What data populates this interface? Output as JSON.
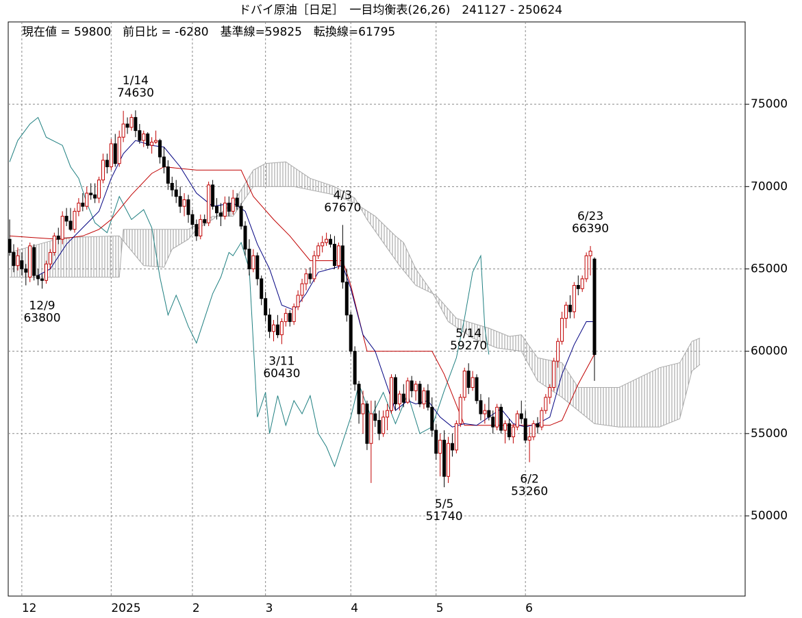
{
  "chart_data": {
    "type": "candlestick",
    "title": "ドバイ原油［日足］　一目均衡表(26,26)　241127 - 250624",
    "info": "現在値 = 59800　前日比 = -6280　基準線=59825　転換線=61795",
    "ylim": [
      45130,
      80000
    ],
    "yticks": [
      50000,
      55000,
      60000,
      65000,
      70000,
      75000
    ],
    "xlim": [
      -0.35,
      181.1
    ],
    "xticks": [
      {
        "value": 3,
        "label": "12"
      },
      {
        "value": 25,
        "label": "2025"
      },
      {
        "value": 45,
        "label": "2"
      },
      {
        "value": 63,
        "label": "3"
      },
      {
        "value": 84,
        "label": "4"
      },
      {
        "value": 105,
        "label": "5"
      },
      {
        "value": 127,
        "label": "6"
      }
    ],
    "grid": true,
    "up_color": "#c00000",
    "down_color": "#000000",
    "candles": [
      [
        66800,
        68000,
        65800,
        66000
      ],
      [
        66000,
        66500,
        64800,
        65200
      ],
      [
        65200,
        66300,
        64900,
        65800
      ],
      [
        65500,
        66000,
        64600,
        65000
      ],
      [
        65000,
        65300,
        64000,
        64800
      ],
      [
        64500,
        66600,
        64200,
        66400
      ],
      [
        66300,
        66500,
        64300,
        64600
      ],
      [
        64600,
        65000,
        64000,
        64400
      ],
      [
        64400,
        64700,
        63800,
        64300
      ],
      [
        64300,
        65500,
        64100,
        65300
      ],
      [
        65300,
        66200,
        65000,
        66000
      ],
      [
        66000,
        67200,
        65800,
        67000
      ],
      [
        67000,
        67500,
        66500,
        66800
      ],
      [
        66800,
        68500,
        66500,
        68200
      ],
      [
        68200,
        68700,
        67600,
        67900
      ],
      [
        67900,
        68700,
        67300,
        67400
      ],
      [
        67400,
        68700,
        67200,
        68500
      ],
      [
        68500,
        69300,
        68200,
        69000
      ],
      [
        69000,
        69600,
        68500,
        68800
      ],
      [
        68800,
        70000,
        68600,
        69600
      ],
      [
        69600,
        70200,
        69200,
        69500
      ],
      [
        69500,
        70200,
        69000,
        69300
      ],
      [
        69300,
        70600,
        69000,
        70400
      ],
      [
        70400,
        72000,
        70200,
        71600
      ],
      [
        71600,
        72000,
        70800,
        71200
      ],
      [
        71200,
        72900,
        71000,
        72600
      ],
      [
        72600,
        73200,
        71200,
        71400
      ],
      [
        71400,
        73400,
        71200,
        73000
      ],
      [
        73000,
        74600,
        72700,
        73800
      ],
      [
        73800,
        74200,
        73200,
        73600
      ],
      [
        73600,
        74400,
        73400,
        74200
      ],
      [
        74200,
        74630,
        73000,
        73400
      ],
      [
        73400,
        73800,
        72600,
        72800
      ],
      [
        72800,
        73400,
        72400,
        73200
      ],
      [
        73200,
        73300,
        72300,
        72500
      ],
      [
        72500,
        73000,
        72000,
        72700
      ],
      [
        72700,
        73400,
        72600,
        72800
      ],
      [
        72800,
        72900,
        71400,
        71800
      ],
      [
        71800,
        72400,
        70800,
        71200
      ],
      [
        71200,
        71600,
        69800,
        70200
      ],
      [
        70200,
        70600,
        69400,
        69800
      ],
      [
        69800,
        70400,
        69000,
        69400
      ],
      [
        69400,
        70000,
        68400,
        68800
      ],
      [
        68800,
        69600,
        68200,
        69200
      ],
      [
        69200,
        69500,
        67800,
        68300
      ],
      [
        68300,
        68600,
        67400,
        67700
      ],
      [
        67700,
        68000,
        66700,
        67000
      ],
      [
        67000,
        68300,
        66800,
        68000
      ],
      [
        68000,
        68300,
        67600,
        67800
      ],
      [
        67800,
        70300,
        67600,
        70100
      ],
      [
        70100,
        70400,
        68600,
        68800
      ],
      [
        68800,
        69300,
        68000,
        68400
      ],
      [
        68400,
        69000,
        67600,
        68200
      ],
      [
        68200,
        69400,
        68000,
        69000
      ],
      [
        69000,
        69400,
        68200,
        68500
      ],
      [
        68500,
        69800,
        68300,
        69300
      ],
      [
        69300,
        69600,
        68600,
        68800
      ],
      [
        68800,
        69000,
        67400,
        67600
      ],
      [
        67600,
        67900,
        65800,
        66200
      ],
      [
        66200,
        66800,
        64600,
        65000
      ],
      [
        65000,
        66200,
        64800,
        65800
      ],
      [
        65800,
        66000,
        64000,
        64400
      ],
      [
        64400,
        64600,
        62800,
        63200
      ],
      [
        63200,
        63600,
        61800,
        62200
      ],
      [
        62200,
        62600,
        60800,
        61200
      ],
      [
        61200,
        61900,
        60600,
        61600
      ],
      [
        61600,
        62200,
        60800,
        61000
      ],
      [
        61000,
        62000,
        60430,
        61800
      ],
      [
        61800,
        62600,
        61500,
        62300
      ],
      [
        62300,
        62500,
        61500,
        61800
      ],
      [
        61800,
        62900,
        61600,
        62700
      ],
      [
        62700,
        63700,
        62500,
        63400
      ],
      [
        63400,
        64400,
        63000,
        64100
      ],
      [
        64100,
        65000,
        63700,
        64700
      ],
      [
        64700,
        65100,
        64100,
        64400
      ],
      [
        64400,
        66100,
        64200,
        65800
      ],
      [
        65800,
        66600,
        65600,
        66400
      ],
      [
        66400,
        67000,
        66000,
        66600
      ],
      [
        66600,
        67200,
        66400,
        66800
      ],
      [
        66800,
        67100,
        66300,
        66500
      ],
      [
        66500,
        67000,
        65000,
        65200
      ],
      [
        65200,
        66600,
        65000,
        66400
      ],
      [
        66400,
        67670,
        63800,
        64200
      ],
      [
        64200,
        65000,
        61800,
        62200
      ],
      [
        62200,
        62400,
        59800,
        60000
      ],
      [
        60000,
        60300,
        57600,
        58000
      ],
      [
        58000,
        58200,
        55600,
        56200
      ],
      [
        56200,
        57600,
        55000,
        56800
      ],
      [
        56800,
        57000,
        54000,
        54400
      ],
      [
        54400,
        57000,
        52000,
        56200
      ],
      [
        56200,
        57000,
        55400,
        55800
      ],
      [
        55800,
        56400,
        54600,
        55000
      ],
      [
        55000,
        56400,
        54800,
        56000
      ],
      [
        56000,
        56800,
        55200,
        56400
      ],
      [
        56400,
        58600,
        56200,
        58400
      ],
      [
        58400,
        58600,
        56400,
        56800
      ],
      [
        56800,
        57600,
        56400,
        57400
      ],
      [
        57400,
        58000,
        56600,
        56900
      ],
      [
        56900,
        58400,
        56800,
        58200
      ],
      [
        58200,
        58500,
        57200,
        57600
      ],
      [
        57600,
        58200,
        57000,
        58000
      ],
      [
        58000,
        58200,
        56600,
        56800
      ],
      [
        56800,
        57800,
        56500,
        57600
      ],
      [
        57600,
        58000,
        56400,
        56600
      ],
      [
        56600,
        57200,
        54800,
        55200
      ],
      [
        55200,
        55600,
        53400,
        53800
      ],
      [
        53800,
        55000,
        52400,
        54600
      ],
      [
        54600,
        55200,
        51740,
        52400
      ],
      [
        52400,
        54800,
        52000,
        54400
      ],
      [
        54400,
        55000,
        53600,
        54000
      ],
      [
        54000,
        55800,
        53800,
        55600
      ],
      [
        55600,
        57400,
        55400,
        57200
      ],
      [
        57200,
        59000,
        57000,
        58800
      ],
      [
        58800,
        59270,
        57400,
        57800
      ],
      [
        57800,
        58800,
        57600,
        58400
      ],
      [
        58400,
        58600,
        56800,
        57000
      ],
      [
        57000,
        57400,
        55800,
        56200
      ],
      [
        56200,
        56800,
        55600,
        56400
      ],
      [
        56400,
        57200,
        55800,
        56000
      ],
      [
        56000,
        56400,
        55000,
        55400
      ],
      [
        55400,
        56800,
        55200,
        56600
      ],
      [
        56600,
        56800,
        55000,
        55200
      ],
      [
        55200,
        55800,
        54400,
        55600
      ],
      [
        55600,
        55900,
        54600,
        54800
      ],
      [
        54800,
        55600,
        54400,
        55400
      ],
      [
        55400,
        56400,
        55200,
        56200
      ],
      [
        56200,
        57000,
        55600,
        55900
      ],
      [
        55900,
        56400,
        54400,
        54600
      ],
      [
        54600,
        55400,
        53260,
        54800
      ],
      [
        54800,
        55800,
        54600,
        55600
      ],
      [
        55600,
        56000,
        55000,
        55400
      ],
      [
        55400,
        56600,
        55200,
        56400
      ],
      [
        56400,
        57400,
        56200,
        57200
      ],
      [
        57200,
        58000,
        56800,
        57800
      ],
      [
        57800,
        59600,
        57600,
        59400
      ],
      [
        59400,
        60800,
        59000,
        60600
      ],
      [
        60600,
        62400,
        60400,
        62000
      ],
      [
        62000,
        63000,
        61400,
        62800
      ],
      [
        62800,
        63400,
        62000,
        62400
      ],
      [
        62400,
        64200,
        62000,
        64000
      ],
      [
        64000,
        64600,
        63400,
        63800
      ],
      [
        63800,
        64600,
        63600,
        64400
      ],
      [
        64400,
        66000,
        64200,
        65800
      ],
      [
        65800,
        66390,
        64600,
        66080
      ],
      [
        65600,
        65700,
        58200,
        59800
      ]
    ],
    "annotations": [
      {
        "label": "12/9",
        "value": 63800
      },
      {
        "label": "1/14",
        "value": 74630
      },
      {
        "label": "3/11",
        "value": 60430
      },
      {
        "label": "4/3",
        "value": 67670
      },
      {
        "label": "5/5",
        "value": 51740
      },
      {
        "label": "5/14",
        "value": 59270
      },
      {
        "label": "6/2",
        "value": 53260
      },
      {
        "label": "6/23",
        "value": 66390
      }
    ],
    "cloud": {
      "color": "#aaaaaa",
      "span_a": {
        "x": [
          0,
          13,
          26,
          27,
          33,
          38,
          40,
          44,
          46,
          50,
          55,
          60,
          63,
          68,
          74,
          80,
          85,
          88,
          92,
          96,
          100,
          105,
          110,
          118,
          123,
          126,
          130,
          136,
          140,
          150,
          160,
          165,
          168,
          170
        ],
        "values": [
          66000,
          66900,
          67000,
          67000,
          65200,
          65100,
          66200,
          66800,
          67400,
          68000,
          69000,
          71000,
          71400,
          71500,
          70500,
          70000,
          69300,
          68000,
          66600,
          65200,
          64000,
          63400,
          62000,
          61400,
          60900,
          61000,
          59600,
          59300,
          57800,
          57800,
          59000,
          59300,
          60600,
          60800
        ]
      },
      "span_b": {
        "x": [
          0,
          27,
          28,
          44,
          50,
          55,
          60,
          70,
          80,
          85,
          90,
          95,
          97,
          100,
          104,
          108,
          114,
          120,
          126,
          130,
          136,
          144,
          150,
          160,
          165,
          168,
          170
        ],
        "values": [
          64500,
          64500,
          67400,
          67400,
          68200,
          68200,
          70000,
          70000,
          69500,
          69000,
          68200,
          67000,
          66600,
          65000,
          63600,
          61800,
          60800,
          60200,
          60000,
          58200,
          57200,
          55600,
          55400,
          55400,
          55900,
          58800,
          59200
        ]
      }
    },
    "lines": [
      {
        "color": "#1e7f80",
        "x": [
          0,
          2,
          5,
          7,
          9,
          13,
          15,
          17,
          19,
          21,
          24,
          27,
          30,
          33,
          35,
          37,
          39,
          41,
          42,
          44,
          46,
          48,
          50,
          52,
          54,
          55,
          57,
          59,
          61,
          63,
          64,
          66,
          68,
          70,
          72,
          74,
          76,
          78,
          80,
          82,
          84,
          86,
          89,
          92,
          95,
          98,
          101,
          104,
          107,
          110,
          112,
          114,
          116,
          117,
          118
        ],
        "values": [
          71500,
          72800,
          73800,
          74200,
          73000,
          72500,
          71200,
          70500,
          69000,
          67800,
          67200,
          69400,
          68000,
          68600,
          67500,
          64500,
          62200,
          63400,
          62800,
          61500,
          60500,
          62000,
          63500,
          64500,
          66000,
          65800,
          66600,
          65000,
          56000,
          57500,
          55000,
          57300,
          55500,
          57000,
          56200,
          57300,
          55000,
          54200,
          53000,
          54500,
          56000,
          58000,
          56000,
          57500,
          55600,
          57400,
          55000,
          55400,
          57600,
          59600,
          62000,
          64800,
          65800,
          61400,
          59800
        ]
      },
      {
        "color": "#c00000",
        "x": [
          0,
          12,
          18,
          22,
          25,
          30,
          35,
          38,
          46,
          57,
          60,
          65,
          69,
          74,
          82,
          84,
          88,
          104,
          107,
          112,
          125,
          133,
          136,
          140,
          144
        ],
        "values": [
          67000,
          66800,
          67000,
          67400,
          68000,
          69500,
          70800,
          71200,
          71000,
          71000,
          69400,
          68000,
          67000,
          65500,
          65500,
          64000,
          60000,
          60000,
          58600,
          55500,
          55500,
          55500,
          55800,
          58000,
          59825
        ]
      },
      {
        "color": "#000080",
        "x": [
          7,
          10,
          14,
          18,
          22,
          25,
          28,
          31,
          35,
          38,
          42,
          46,
          50,
          55,
          58,
          61,
          64,
          67,
          70,
          73,
          76,
          79,
          82,
          84,
          87,
          90,
          95,
          98,
          100,
          103,
          106,
          109,
          112,
          115,
          118,
          121,
          124,
          127,
          130,
          133,
          136,
          139,
          142,
          144
        ],
        "values": [
          64600,
          65000,
          66500,
          67500,
          68500,
          70500,
          72000,
          72800,
          72500,
          72400,
          71200,
          69600,
          68800,
          69000,
          68500,
          66500,
          65000,
          62800,
          62500,
          63500,
          64800,
          65000,
          65200,
          63800,
          61000,
          60000,
          56400,
          57000,
          56800,
          57000,
          56000,
          55400,
          55600,
          55500,
          56000,
          56500,
          55600,
          55400,
          55600,
          56000,
          58600,
          60400,
          61800,
          61795
        ]
      }
    ]
  }
}
